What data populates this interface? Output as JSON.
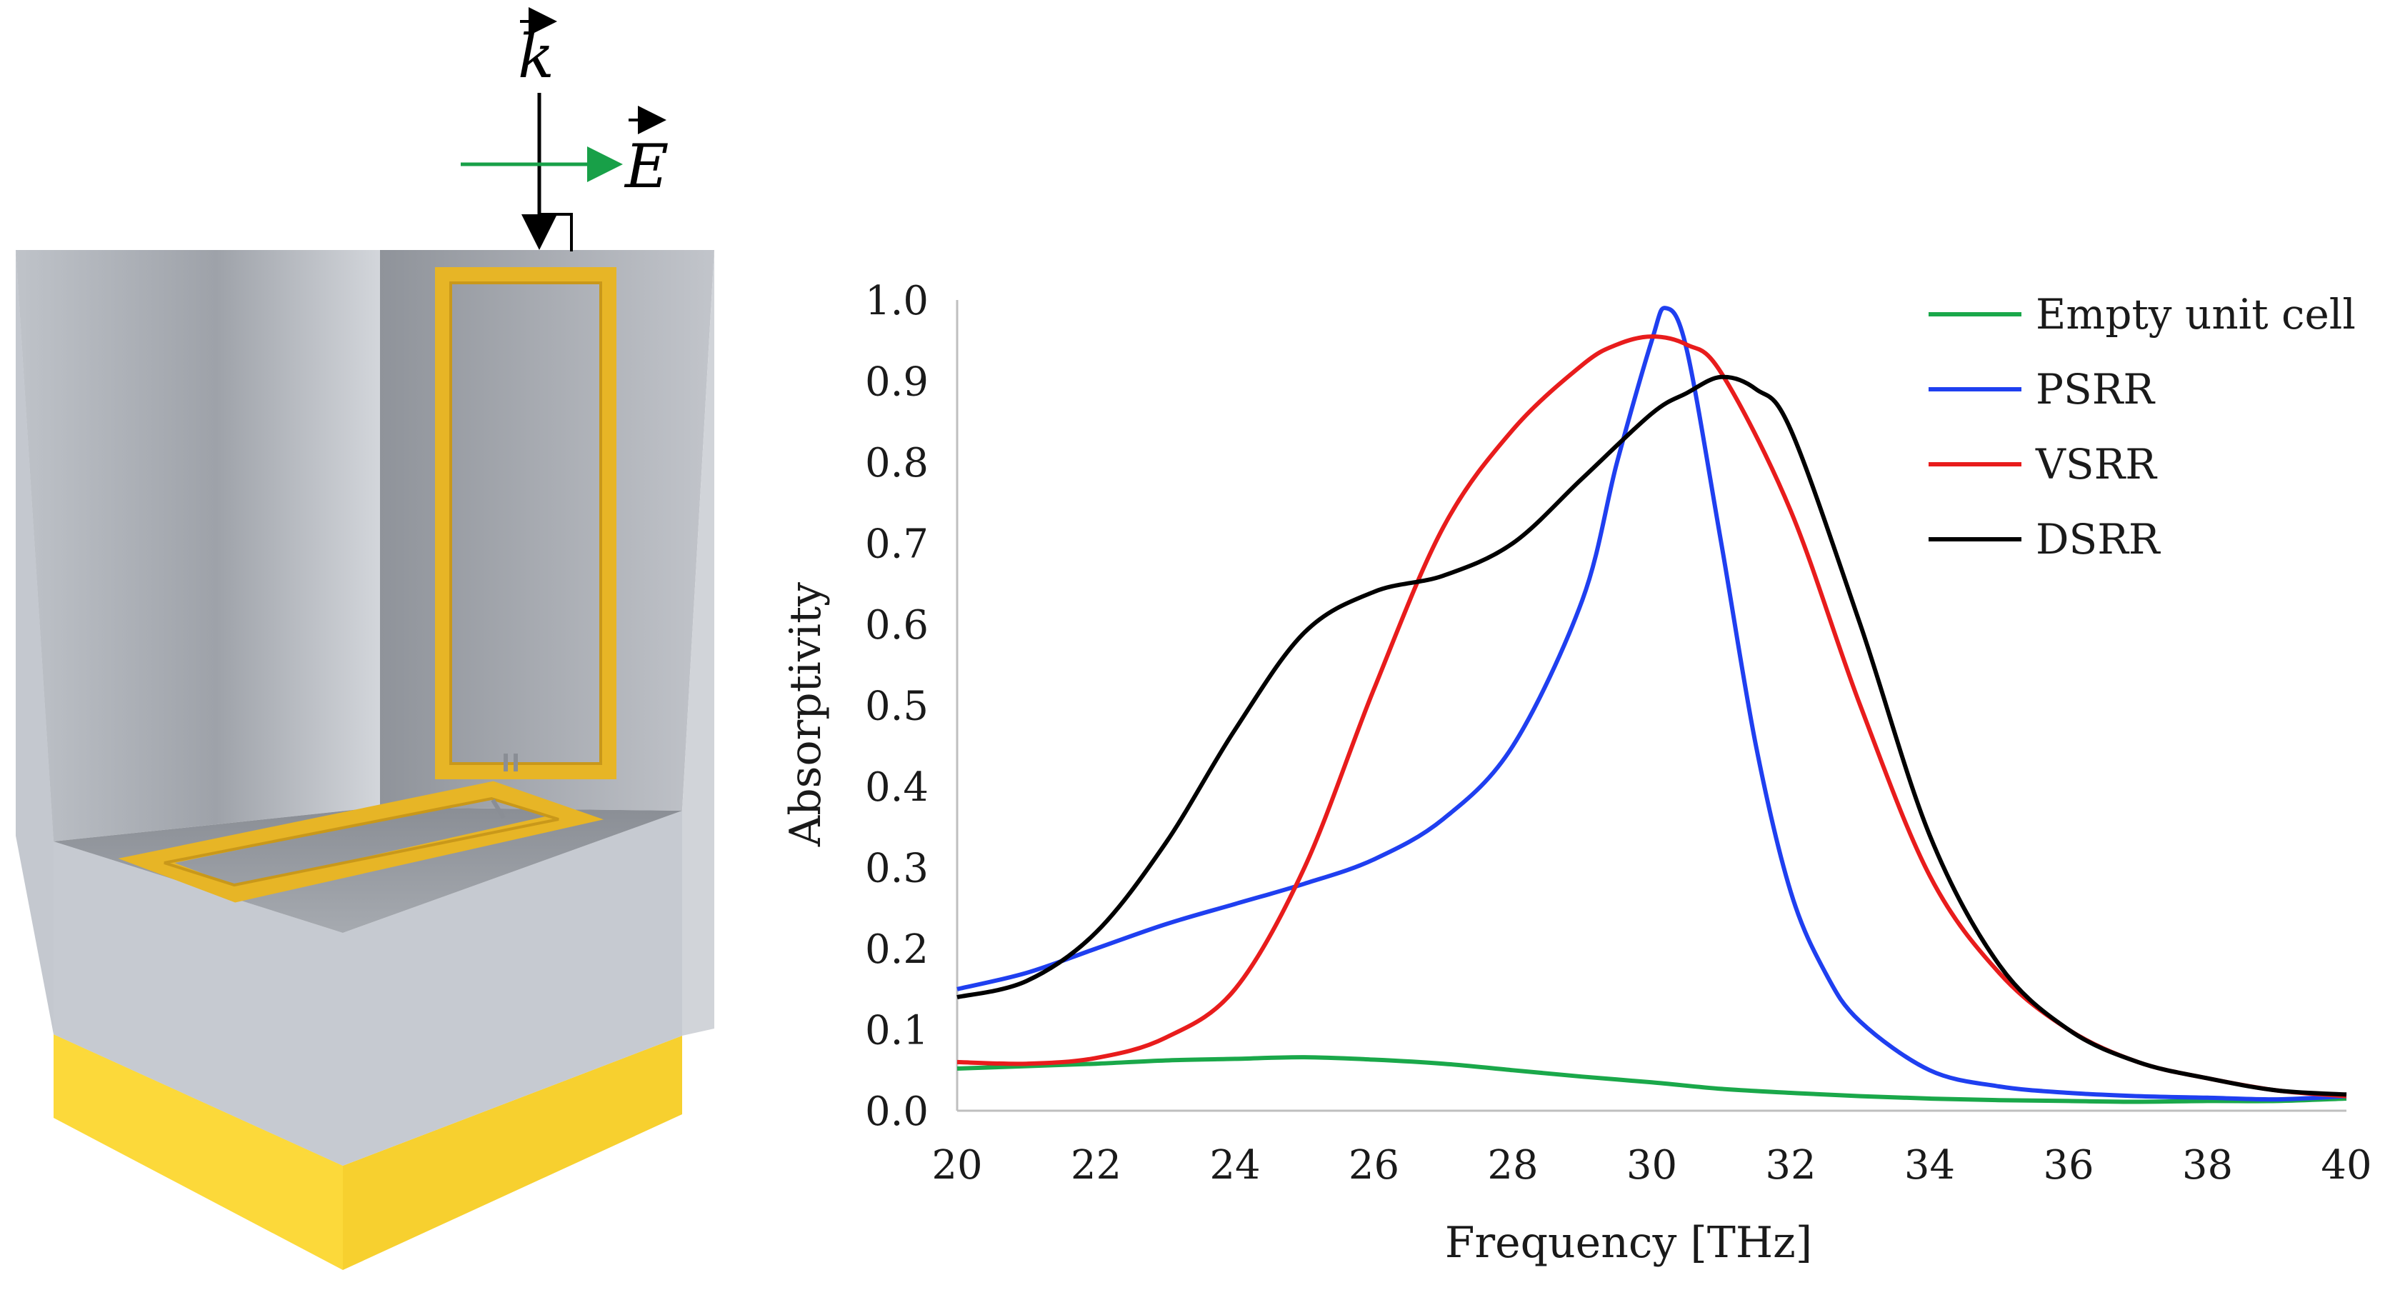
{
  "illustration": {
    "k_label": "k",
    "e_label": "E",
    "colors": {
      "frame": "#e7b526",
      "frame_dark": "#b88a10",
      "base": "#fcd93a",
      "wall": "#b9bcc2",
      "body": "#c8ccd3",
      "e_arrow": "#18a048"
    }
  },
  "chart_data": {
    "type": "line",
    "xlabel": "Frequency [THz]",
    "ylabel": "Absorptivity",
    "xlim": [
      20,
      40
    ],
    "ylim": [
      0,
      1.0
    ],
    "xticks": [
      "20",
      "22",
      "24",
      "26",
      "28",
      "30",
      "32",
      "34",
      "36",
      "38",
      "40"
    ],
    "yticks": [
      "0.0",
      "0.1",
      "0.2",
      "0.3",
      "0.4",
      "0.5",
      "0.6",
      "0.7",
      "0.8",
      "0.9",
      "1.0"
    ],
    "legend_position": "top-right",
    "series": [
      {
        "name": "Empty unit cell",
        "color": "#1aa84a",
        "x": [
          20,
          21,
          22,
          23,
          24,
          25,
          26,
          27,
          28,
          29,
          30,
          31,
          32,
          33,
          34,
          35,
          36,
          37,
          38,
          39,
          40
        ],
        "y": [
          0.052,
          0.055,
          0.058,
          0.062,
          0.064,
          0.066,
          0.063,
          0.058,
          0.05,
          0.042,
          0.035,
          0.027,
          0.022,
          0.018,
          0.015,
          0.013,
          0.012,
          0.011,
          0.012,
          0.012,
          0.015
        ]
      },
      {
        "name": "PSRR",
        "color": "#1f3ff0",
        "x": [
          20,
          21,
          22,
          23,
          24,
          25,
          26,
          27,
          28,
          29,
          29.5,
          30,
          30.2,
          30.5,
          31,
          31.5,
          32,
          32.5,
          33,
          34,
          35,
          36,
          37,
          38,
          39,
          40
        ],
        "y": [
          0.15,
          0.17,
          0.2,
          0.23,
          0.255,
          0.28,
          0.31,
          0.36,
          0.45,
          0.63,
          0.8,
          0.95,
          0.99,
          0.94,
          0.7,
          0.45,
          0.27,
          0.17,
          0.11,
          0.05,
          0.03,
          0.022,
          0.018,
          0.016,
          0.014,
          0.018
        ]
      },
      {
        "name": "VSRR",
        "color": "#e81c1c",
        "x": [
          20,
          21,
          22,
          23,
          24,
          25,
          26,
          27,
          28,
          29,
          29.5,
          30,
          30.5,
          31,
          32,
          33,
          34,
          35,
          36,
          37,
          38,
          39,
          40
        ],
        "y": [
          0.06,
          0.058,
          0.065,
          0.09,
          0.15,
          0.3,
          0.52,
          0.72,
          0.84,
          0.92,
          0.945,
          0.955,
          0.945,
          0.91,
          0.74,
          0.5,
          0.29,
          0.17,
          0.1,
          0.06,
          0.04,
          0.025,
          0.018
        ]
      },
      {
        "name": "DSRR",
        "color": "#000000",
        "x": [
          20,
          21,
          22,
          23,
          24,
          25,
          26,
          27,
          28,
          29,
          30,
          30.5,
          31,
          31.5,
          32,
          33,
          34,
          35,
          36,
          37,
          38,
          39,
          40
        ],
        "y": [
          0.14,
          0.16,
          0.22,
          0.33,
          0.47,
          0.59,
          0.64,
          0.66,
          0.7,
          0.78,
          0.86,
          0.885,
          0.905,
          0.89,
          0.84,
          0.6,
          0.34,
          0.18,
          0.1,
          0.06,
          0.04,
          0.025,
          0.02
        ]
      }
    ]
  }
}
